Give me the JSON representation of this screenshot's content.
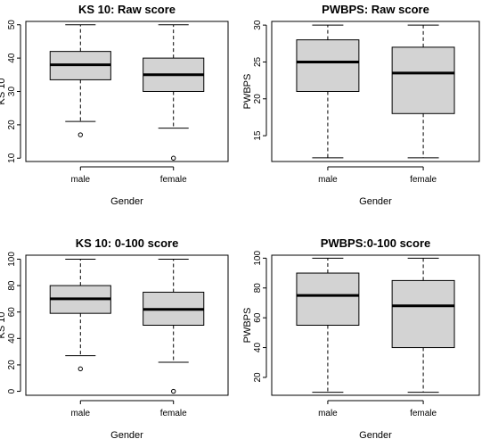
{
  "chart_data": [
    {
      "type": "boxplot",
      "title": "KS 10: Raw score",
      "xlabel": "Gender",
      "ylabel": "KS 10",
      "categories": [
        "male",
        "female"
      ],
      "yticks": [
        10,
        20,
        30,
        40,
        50
      ],
      "ylim": [
        9,
        51
      ],
      "boxes": [
        {
          "name": "male",
          "whisker_low": 21,
          "q1": 33.5,
          "median": 38,
          "q3": 42,
          "whisker_high": 50,
          "outliers": [
            17
          ]
        },
        {
          "name": "female",
          "whisker_low": 19,
          "q1": 30,
          "median": 35,
          "q3": 40,
          "whisker_high": 50,
          "outliers": [
            10
          ]
        }
      ],
      "box_fill": "#d3d3d3"
    },
    {
      "type": "boxplot",
      "title": "PWBPS: Raw score",
      "xlabel": "Gender",
      "ylabel": "PWBPS",
      "categories": [
        "male",
        "female"
      ],
      "yticks": [
        15,
        20,
        25,
        30
      ],
      "ylim": [
        11.5,
        30.5
      ],
      "boxes": [
        {
          "name": "male",
          "whisker_low": 12,
          "q1": 21,
          "median": 25,
          "q3": 28,
          "whisker_high": 30,
          "outliers": []
        },
        {
          "name": "female",
          "whisker_low": 12,
          "q1": 18,
          "median": 23.5,
          "q3": 27,
          "whisker_high": 30,
          "outliers": []
        }
      ],
      "box_fill": "#d3d3d3"
    },
    {
      "type": "boxplot",
      "title": "KS 10: 0-100 score",
      "xlabel": "Gender",
      "ylabel": "KS 10",
      "categories": [
        "male",
        "female"
      ],
      "yticks": [
        0,
        20,
        40,
        60,
        80,
        100
      ],
      "ylim": [
        -3,
        103
      ],
      "boxes": [
        {
          "name": "male",
          "whisker_low": 27,
          "q1": 59,
          "median": 70,
          "q3": 80,
          "whisker_high": 100,
          "outliers": [
            17
          ]
        },
        {
          "name": "female",
          "whisker_low": 22,
          "q1": 50,
          "median": 62,
          "q3": 75,
          "whisker_high": 100,
          "outliers": [
            0
          ]
        }
      ],
      "box_fill": "#d3d3d3"
    },
    {
      "type": "boxplot",
      "title": "PWBPS:0-100 score",
      "xlabel": "Gender",
      "ylabel": "PWBPS",
      "categories": [
        "male",
        "female"
      ],
      "yticks": [
        20,
        40,
        60,
        80,
        100
      ],
      "ylim": [
        8,
        102
      ],
      "boxes": [
        {
          "name": "male",
          "whisker_low": 10,
          "q1": 55,
          "median": 75,
          "q3": 90,
          "whisker_high": 100,
          "outliers": []
        },
        {
          "name": "female",
          "whisker_low": 10,
          "q1": 40,
          "median": 68,
          "q3": 85,
          "whisker_high": 100,
          "outliers": []
        }
      ],
      "box_fill": "#d3d3d3"
    }
  ]
}
